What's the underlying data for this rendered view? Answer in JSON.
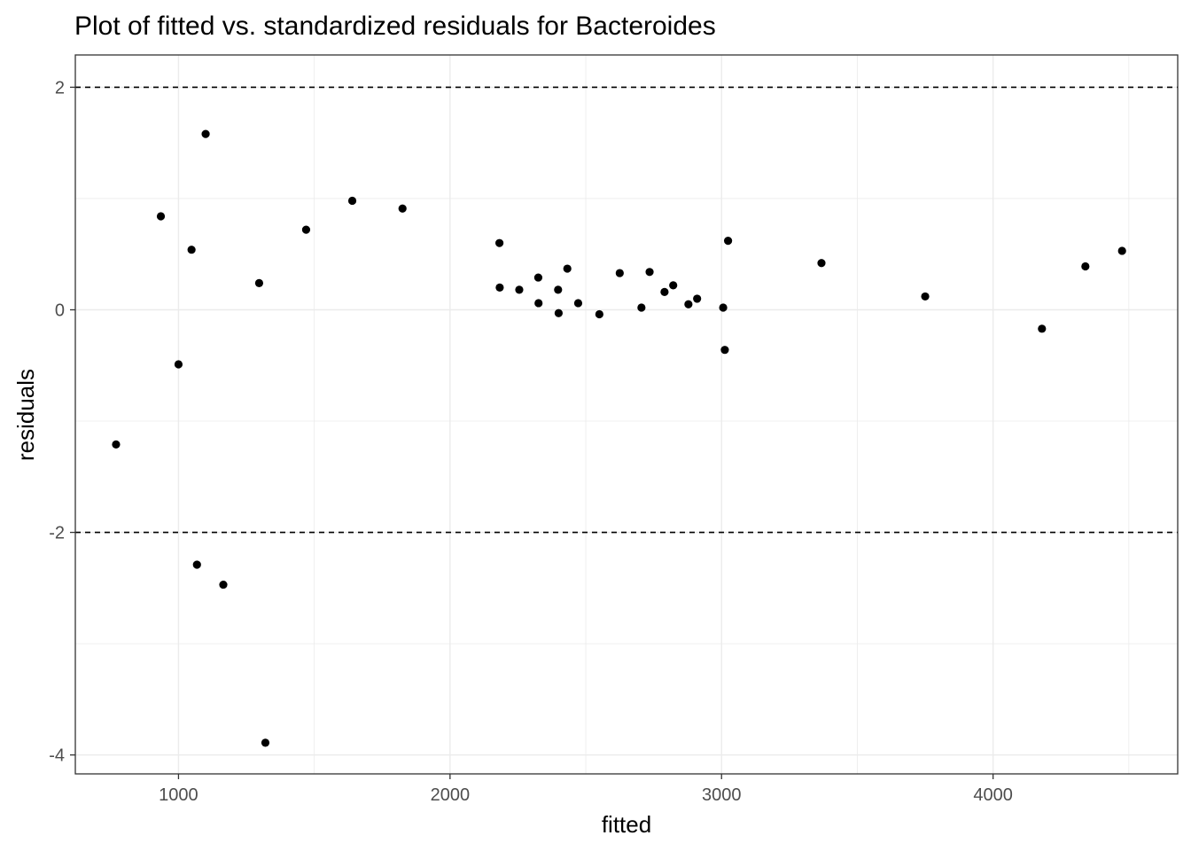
{
  "chart_data": {
    "type": "scatter",
    "title": "Plot of fitted vs. standardized residuals for Bacteroides",
    "xlabel": "fitted",
    "ylabel": "residuals",
    "xlim": [
      620,
      4680
    ],
    "ylim": [
      -4.17,
      2.29
    ],
    "x_ticks": [
      1000,
      2000,
      3000,
      4000
    ],
    "y_ticks": [
      -4,
      -2,
      0,
      2
    ],
    "x_tick_labels": [
      "1000",
      "2000",
      "3000",
      "4000"
    ],
    "y_tick_labels": [
      "-4",
      "-2",
      "0",
      "2"
    ],
    "reference_lines": [
      2,
      -2
    ],
    "grid": true,
    "colors": {
      "points": "#000000",
      "grid": "#ebebeb",
      "panel_border": "#333333",
      "reference_line": "#000000"
    },
    "points": [
      {
        "x": 770,
        "y": -1.21
      },
      {
        "x": 935,
        "y": 0.84
      },
      {
        "x": 1000,
        "y": -0.49
      },
      {
        "x": 1048,
        "y": 0.54
      },
      {
        "x": 1068,
        "y": -2.29
      },
      {
        "x": 1100,
        "y": 1.58
      },
      {
        "x": 1165,
        "y": -2.47
      },
      {
        "x": 1297,
        "y": 0.24
      },
      {
        "x": 1320,
        "y": -3.89
      },
      {
        "x": 1470,
        "y": 0.72
      },
      {
        "x": 1640,
        "y": 0.98
      },
      {
        "x": 1825,
        "y": 0.91
      },
      {
        "x": 2182,
        "y": 0.6
      },
      {
        "x": 2183,
        "y": 0.2
      },
      {
        "x": 2255,
        "y": 0.18
      },
      {
        "x": 2325,
        "y": 0.29
      },
      {
        "x": 2326,
        "y": 0.06
      },
      {
        "x": 2398,
        "y": 0.18
      },
      {
        "x": 2400,
        "y": -0.03
      },
      {
        "x": 2432,
        "y": 0.37
      },
      {
        "x": 2472,
        "y": 0.06
      },
      {
        "x": 2550,
        "y": -0.04
      },
      {
        "x": 2625,
        "y": 0.33
      },
      {
        "x": 2705,
        "y": 0.02
      },
      {
        "x": 2735,
        "y": 0.34
      },
      {
        "x": 2790,
        "y": 0.16
      },
      {
        "x": 2822,
        "y": 0.22
      },
      {
        "x": 2878,
        "y": 0.05
      },
      {
        "x": 2910,
        "y": 0.1
      },
      {
        "x": 3006,
        "y": 0.02
      },
      {
        "x": 3012,
        "y": -0.36
      },
      {
        "x": 3024,
        "y": 0.62
      },
      {
        "x": 3368,
        "y": 0.42
      },
      {
        "x": 3750,
        "y": 0.12
      },
      {
        "x": 4180,
        "y": -0.17
      },
      {
        "x": 4340,
        "y": 0.39
      },
      {
        "x": 4475,
        "y": 0.53
      }
    ]
  }
}
